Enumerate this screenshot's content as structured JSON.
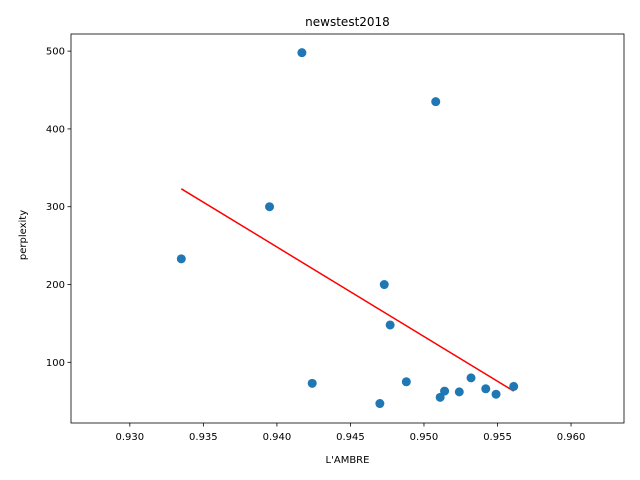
{
  "chart_data": {
    "type": "scatter",
    "title": "newstest2018",
    "xlabel": "L'AMBRE",
    "ylabel": "perplexity",
    "xlim": [
      0.926,
      0.9636
    ],
    "ylim": [
      22,
      522
    ],
    "xticks": [
      "0.930",
      "0.935",
      "0.940",
      "0.945",
      "0.950",
      "0.955",
      "0.960"
    ],
    "xtick_values": [
      0.93,
      0.935,
      0.94,
      0.945,
      0.95,
      0.955,
      0.96
    ],
    "yticks": [
      "100",
      "200",
      "300",
      "400",
      "500"
    ],
    "ytick_values": [
      100,
      200,
      300,
      400,
      500
    ],
    "grid": false,
    "series": [
      {
        "kind": "points",
        "color": "#1f77b4",
        "points": [
          {
            "x": 0.9417,
            "y": 498
          },
          {
            "x": 0.9508,
            "y": 435
          },
          {
            "x": 0.9395,
            "y": 300
          },
          {
            "x": 0.9335,
            "y": 233
          },
          {
            "x": 0.9473,
            "y": 200
          },
          {
            "x": 0.9477,
            "y": 148
          },
          {
            "x": 0.9532,
            "y": 80
          },
          {
            "x": 0.9488,
            "y": 75
          },
          {
            "x": 0.9424,
            "y": 73
          },
          {
            "x": 0.9561,
            "y": 69
          },
          {
            "x": 0.9542,
            "y": 66
          },
          {
            "x": 0.9514,
            "y": 63
          },
          {
            "x": 0.9524,
            "y": 62
          },
          {
            "x": 0.9549,
            "y": 59
          },
          {
            "x": 0.9511,
            "y": 55
          },
          {
            "x": 0.947,
            "y": 47
          }
        ]
      },
      {
        "kind": "fit-line",
        "color": "#ff0000",
        "points": [
          {
            "x": 0.9335,
            "y": 323
          },
          {
            "x": 0.9561,
            "y": 63
          }
        ]
      }
    ]
  }
}
